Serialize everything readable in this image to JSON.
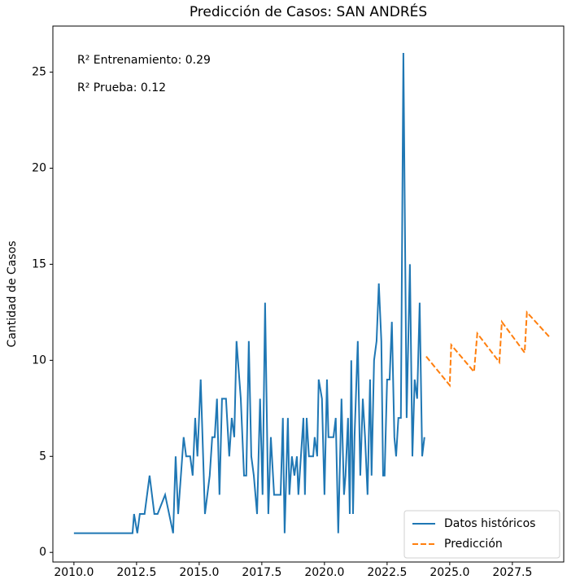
{
  "chart_data": {
    "type": "line",
    "title": "Predicción de Casos: SAN ANDRÉS",
    "ylabel": "Cantidad de Casos",
    "annotations": [
      "R² Entrenamiento: 0.29",
      "R² Prueba: 0.12"
    ],
    "xlim": [
      2009.16,
      2029.55
    ],
    "ylim": [
      -0.5,
      27.4
    ],
    "xticks": [
      {
        "value": 2010,
        "label": "2010.0"
      },
      {
        "value": 2012.5,
        "label": "2012.5"
      },
      {
        "value": 2015,
        "label": "2015.0"
      },
      {
        "value": 2017.5,
        "label": "2017.5"
      },
      {
        "value": 2020,
        "label": "2020.0"
      },
      {
        "value": 2022.5,
        "label": "2022.5"
      },
      {
        "value": 2025,
        "label": "2025.0"
      },
      {
        "value": 2027.5,
        "label": "2027.5"
      }
    ],
    "yticks": [
      0,
      5,
      10,
      15,
      20,
      25
    ],
    "legend": "lower right",
    "series": [
      {
        "name": "Datos históricos",
        "color": "#1f77b4",
        "linestyle": "solid",
        "x": [
          2010.0,
          2012.34,
          2012.4,
          2012.53,
          2012.63,
          2012.82,
          2013.02,
          2013.21,
          2013.34,
          2013.64,
          2013.96,
          2014.06,
          2014.16,
          2014.38,
          2014.48,
          2014.64,
          2014.74,
          2014.84,
          2014.93,
          2015.06,
          2015.23,
          2015.42,
          2015.52,
          2015.62,
          2015.71,
          2015.81,
          2015.91,
          2016.07,
          2016.2,
          2016.3,
          2016.4,
          2016.49,
          2016.66,
          2016.79,
          2016.88,
          2016.98,
          2017.08,
          2017.18,
          2017.31,
          2017.43,
          2017.53,
          2017.63,
          2017.76,
          2017.86,
          2017.99,
          2018.12,
          2018.25,
          2018.34,
          2018.41,
          2018.54,
          2018.6,
          2018.7,
          2018.8,
          2018.9,
          2018.96,
          2019.06,
          2019.16,
          2019.22,
          2019.29,
          2019.38,
          2019.45,
          2019.55,
          2019.61,
          2019.71,
          2019.77,
          2019.9,
          2020.0,
          2020.1,
          2020.16,
          2020.26,
          2020.36,
          2020.45,
          2020.55,
          2020.68,
          2020.78,
          2020.84,
          2020.94,
          2021.01,
          2021.07,
          2021.14,
          2021.2,
          2021.33,
          2021.43,
          2021.53,
          2021.62,
          2021.72,
          2021.82,
          2021.88,
          2021.98,
          2022.08,
          2022.17,
          2022.27,
          2022.34,
          2022.4,
          2022.5,
          2022.6,
          2022.69,
          2022.79,
          2022.86,
          2022.95,
          2023.05,
          2023.15,
          2023.28,
          2023.41,
          2023.51,
          2023.6,
          2023.7,
          2023.8,
          2023.9,
          2023.99
        ],
        "values": [
          1,
          1,
          2,
          1,
          2,
          2,
          4,
          2,
          2,
          3,
          1,
          5,
          2,
          6,
          5,
          5,
          4,
          7,
          5,
          9,
          2,
          4,
          6,
          6,
          8,
          3,
          8,
          8,
          5,
          7,
          6,
          11,
          8,
          4,
          4,
          11,
          5,
          4,
          2,
          8,
          3,
          13,
          2,
          6,
          3,
          3,
          3,
          7,
          1,
          7,
          3,
          5,
          4,
          5,
          3,
          5,
          7,
          3,
          7,
          5,
          5,
          5,
          6,
          5,
          9,
          8,
          3,
          9,
          6,
          6,
          6,
          7,
          1,
          8,
          3,
          4,
          7,
          2,
          10,
          2,
          6,
          11,
          4,
          8,
          6,
          3,
          9,
          4,
          10,
          11,
          14,
          11,
          4,
          4,
          9,
          9,
          12,
          6,
          5,
          7,
          7,
          26,
          7,
          15,
          5,
          9,
          8,
          13,
          5,
          6
        ]
      },
      {
        "name": "Predicción",
        "color": "#ff7f0e",
        "linestyle": "dashed",
        "x": [
          2024.06,
          2025.0,
          2025.06,
          2025.97,
          2026.1,
          2026.98,
          2027.08,
          2027.99,
          2028.08,
          2028.99
        ],
        "values": [
          10.2,
          8.7,
          10.8,
          9.4,
          11.4,
          9.9,
          12.0,
          10.4,
          12.5,
          11.2
        ]
      }
    ]
  }
}
